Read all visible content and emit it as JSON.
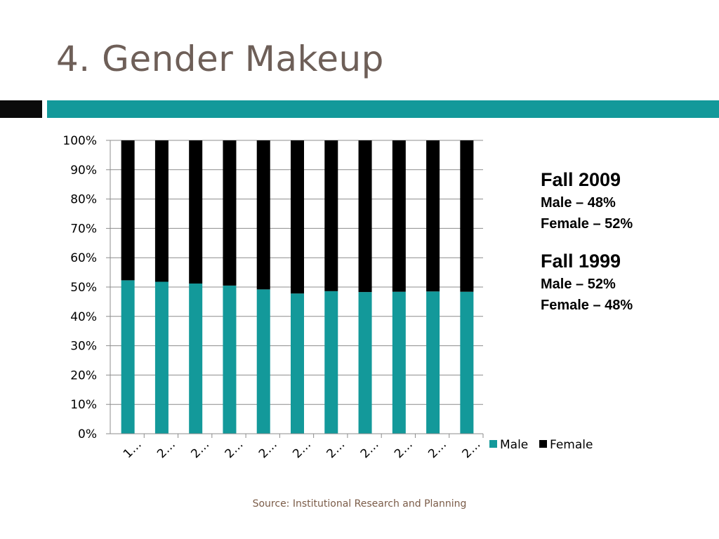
{
  "title": "4. Gender Makeup",
  "annotations": [
    {
      "heading": "Fall 2009",
      "lines": [
        "Male – 48%",
        "Female – 52%"
      ]
    },
    {
      "heading": "Fall 1999",
      "lines": [
        "Male – 52%",
        "Female – 48%"
      ]
    }
  ],
  "source": "Source: Institutional Research and Planning",
  "colors": {
    "male": "#13999a",
    "female": "#000000",
    "title": "#6e5f58",
    "source": "#7b5c48"
  },
  "chart_data": {
    "type": "bar",
    "stacked": true,
    "percent": true,
    "categories": [
      "1…",
      "2…",
      "2…",
      "2…",
      "2…",
      "2…",
      "2…",
      "2…",
      "2…",
      "2…",
      "2…"
    ],
    "series": [
      {
        "name": "Male",
        "color": "#13999a",
        "values": [
          52.3,
          51.8,
          51.2,
          50.5,
          49.2,
          47.8,
          48.6,
          48.3,
          48.4,
          48.5,
          48.4
        ]
      },
      {
        "name": "Female",
        "color": "#000000",
        "values": [
          47.7,
          48.2,
          48.8,
          49.5,
          50.8,
          52.2,
          51.4,
          51.7,
          51.6,
          51.5,
          51.6
        ]
      }
    ],
    "yticks": [
      "0%",
      "10%",
      "20%",
      "30%",
      "40%",
      "50%",
      "60%",
      "70%",
      "80%",
      "90%",
      "100%"
    ],
    "ylim": [
      0,
      100
    ],
    "grid": true,
    "legend": "right"
  }
}
